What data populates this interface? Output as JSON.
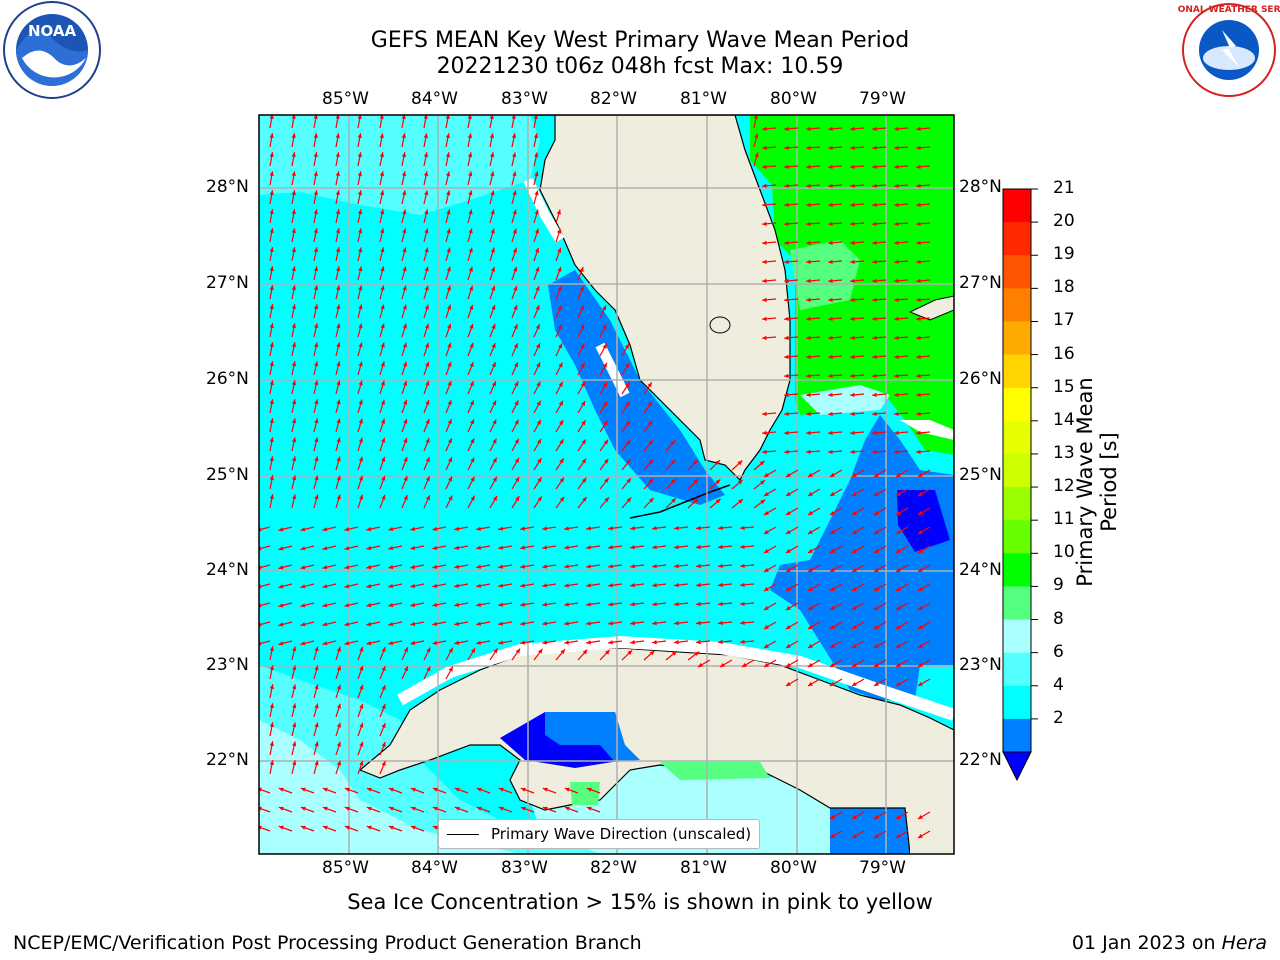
{
  "title_line1": "GEFS MEAN Key West Primary Wave Mean Period",
  "title_line2": "20221230 t06z 048h fcst   Max: 10.59",
  "logos": {
    "left": "noaa-logo",
    "right": "national-weather-service-logo",
    "left_text": "NOAA",
    "right_text": "NATIONAL WEATHER SERVICE"
  },
  "lon_labels": [
    "85°W",
    "84°W",
    "83°W",
    "82°W",
    "81°W",
    "80°W",
    "79°W"
  ],
  "lat_labels": [
    "28°N",
    "27°N",
    "26°N",
    "25°N",
    "24°N",
    "23°N",
    "22°N"
  ],
  "legend_label": "Primary Wave Direction (unscaled)",
  "colorbar": {
    "label": "Primary Wave Mean Period [s]",
    "ticks": [
      "21",
      "20",
      "19",
      "18",
      "17",
      "16",
      "15",
      "14",
      "13",
      "12",
      "11",
      "10",
      "9",
      "8",
      "6",
      "4",
      "2"
    ],
    "colors": [
      "#ff0000",
      "#ff2a00",
      "#ff5500",
      "#ff7f00",
      "#ffaa00",
      "#ffd400",
      "#ffff00",
      "#e6ff00",
      "#ccff00",
      "#99ff00",
      "#66ff00",
      "#00ff00",
      "#55ff80",
      "#aaffff",
      "#55ffff",
      "#00ffff",
      "#0080ff"
    ],
    "under_color": "#0000ff"
  },
  "note": "Sea Ice Concentration > 15% is shown in pink to yellow",
  "footer_left": "NCEP/EMC/Verification Post Processing Product Generation Branch",
  "footer_right_date": "01 Jan 2023 on ",
  "footer_right_host": "Hera",
  "colors": {
    "land": "#efedde",
    "coast": "#000000",
    "grid": "#b0b0b0",
    "arrow": "#ff0000"
  }
}
